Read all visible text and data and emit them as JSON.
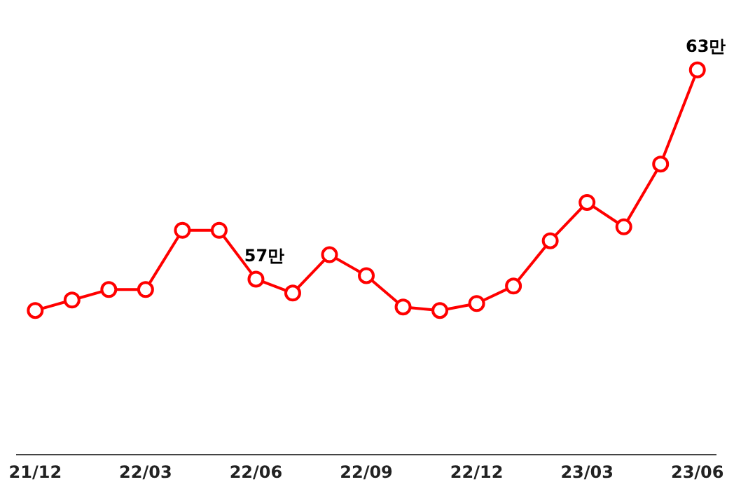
{
  "chart_data": {
    "type": "line",
    "categories": [
      "21/12",
      null,
      null,
      "22/03",
      null,
      null,
      "22/06",
      null,
      null,
      "22/09",
      null,
      null,
      "22/12",
      null,
      null,
      "23/03",
      null,
      null,
      "23/06"
    ],
    "series": [
      {
        "color": "#ff0000",
        "values": [
          56.1,
          56.4,
          56.7,
          56.7,
          58.4,
          58.4,
          57,
          56.6,
          57.7,
          57.1,
          56.2,
          56.1,
          56.3,
          56.8,
          58.1,
          59.2,
          58.5,
          60.3,
          63
        ],
        "value_labels": [
          null,
          null,
          null,
          null,
          null,
          null,
          "57만",
          null,
          null,
          null,
          null,
          null,
          null,
          null,
          null,
          null,
          null,
          null,
          "63만"
        ]
      }
    ],
    "tick_labels": "x",
    "grid": false,
    "legend": false,
    "marker": "circle",
    "line_style": "solid"
  }
}
